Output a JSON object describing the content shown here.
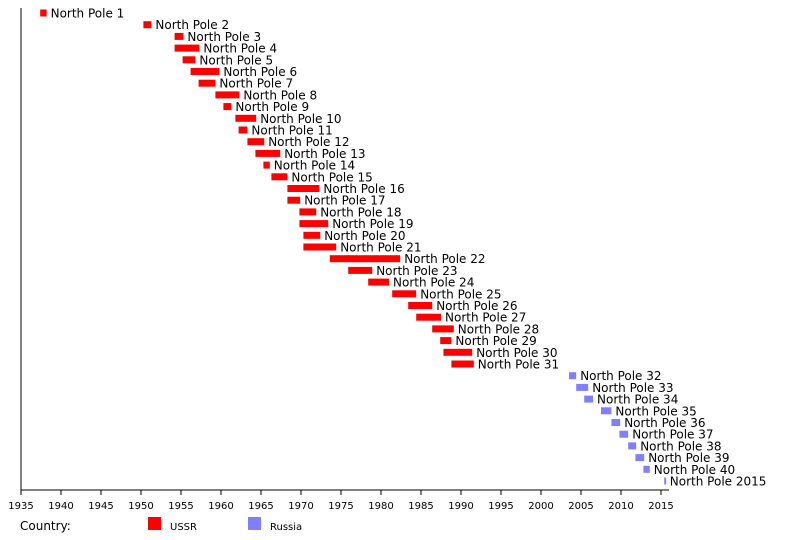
{
  "chart_data": {
    "type": "bar",
    "orientation": "horizontal-timeline",
    "xlim": [
      1935,
      2016
    ],
    "x_ticks": [
      "1935",
      "1940",
      "1945",
      "1950",
      "1955",
      "1960",
      "1965",
      "1970",
      "1975",
      "1980",
      "1985",
      "1990",
      "1995",
      "2000",
      "2005",
      "2010",
      "2015"
    ],
    "grid": false,
    "legend": {
      "title": "Country:",
      "placement": "bottom",
      "entries": [
        {
          "name": "USSR",
          "color": "#ff0000"
        },
        {
          "name": "Russia",
          "color": "#8080ff"
        }
      ]
    },
    "stations": [
      {
        "name": "North Pole 1",
        "start": 1937.4,
        "end": 1938.2,
        "country": "USSR"
      },
      {
        "name": "North Pole 2",
        "start": 1950.3,
        "end": 1951.3,
        "country": "USSR"
      },
      {
        "name": "North Pole 3",
        "start": 1954.2,
        "end": 1955.3,
        "country": "USSR"
      },
      {
        "name": "North Pole 4",
        "start": 1954.2,
        "end": 1957.3,
        "country": "USSR"
      },
      {
        "name": "North Pole 5",
        "start": 1955.2,
        "end": 1956.8,
        "country": "USSR"
      },
      {
        "name": "North Pole 6",
        "start": 1956.2,
        "end": 1959.8,
        "country": "USSR"
      },
      {
        "name": "North Pole 7",
        "start": 1957.2,
        "end": 1959.3,
        "country": "USSR"
      },
      {
        "name": "North Pole 8",
        "start": 1959.3,
        "end": 1962.3,
        "country": "USSR"
      },
      {
        "name": "North Pole 9",
        "start": 1960.3,
        "end": 1961.3,
        "country": "USSR"
      },
      {
        "name": "North Pole 10",
        "start": 1961.8,
        "end": 1964.4,
        "country": "USSR"
      },
      {
        "name": "North Pole 11",
        "start": 1962.2,
        "end": 1963.3,
        "country": "USSR"
      },
      {
        "name": "North Pole 12",
        "start": 1963.3,
        "end": 1965.4,
        "country": "USSR"
      },
      {
        "name": "North Pole 13",
        "start": 1964.3,
        "end": 1967.4,
        "country": "USSR"
      },
      {
        "name": "North Pole 14",
        "start": 1965.3,
        "end": 1966.1,
        "country": "USSR"
      },
      {
        "name": "North Pole 15",
        "start": 1966.3,
        "end": 1968.3,
        "country": "USSR"
      },
      {
        "name": "North Pole 16",
        "start": 1968.3,
        "end": 1972.3,
        "country": "USSR"
      },
      {
        "name": "North Pole 17",
        "start": 1968.3,
        "end": 1969.9,
        "country": "USSR"
      },
      {
        "name": "North Pole 18",
        "start": 1969.8,
        "end": 1971.9,
        "country": "USSR"
      },
      {
        "name": "North Pole 19",
        "start": 1969.8,
        "end": 1973.4,
        "country": "USSR"
      },
      {
        "name": "North Pole 20",
        "start": 1970.3,
        "end": 1972.4,
        "country": "USSR"
      },
      {
        "name": "North Pole 21",
        "start": 1970.3,
        "end": 1974.4,
        "country": "USSR"
      },
      {
        "name": "North Pole 22",
        "start": 1973.6,
        "end": 1982.4,
        "country": "USSR"
      },
      {
        "name": "North Pole 23",
        "start": 1975.9,
        "end": 1978.9,
        "country": "USSR"
      },
      {
        "name": "North Pole 24",
        "start": 1978.4,
        "end": 1981.0,
        "country": "USSR"
      },
      {
        "name": "North Pole 25",
        "start": 1981.4,
        "end": 1984.4,
        "country": "USSR"
      },
      {
        "name": "North Pole 26",
        "start": 1983.4,
        "end": 1986.4,
        "country": "USSR"
      },
      {
        "name": "North Pole 27",
        "start": 1984.4,
        "end": 1987.5,
        "country": "USSR"
      },
      {
        "name": "North Pole 28",
        "start": 1986.4,
        "end": 1989.1,
        "country": "USSR"
      },
      {
        "name": "North Pole 29",
        "start": 1987.4,
        "end": 1988.8,
        "country": "USSR"
      },
      {
        "name": "North Pole 30",
        "start": 1987.8,
        "end": 1991.4,
        "country": "USSR"
      },
      {
        "name": "North Pole 31",
        "start": 1988.8,
        "end": 1991.6,
        "country": "USSR"
      },
      {
        "name": "North Pole 32",
        "start": 2003.5,
        "end": 2004.4,
        "country": "Russia"
      },
      {
        "name": "North Pole 33",
        "start": 2004.4,
        "end": 2005.9,
        "country": "Russia"
      },
      {
        "name": "North Pole 34",
        "start": 2005.4,
        "end": 2006.5,
        "country": "Russia"
      },
      {
        "name": "North Pole 35",
        "start": 2007.5,
        "end": 2008.8,
        "country": "Russia"
      },
      {
        "name": "North Pole 36",
        "start": 2008.8,
        "end": 2009.9,
        "country": "Russia"
      },
      {
        "name": "North Pole 37",
        "start": 2009.8,
        "end": 2010.9,
        "country": "Russia"
      },
      {
        "name": "North Pole 38",
        "start": 2010.9,
        "end": 2011.9,
        "country": "Russia"
      },
      {
        "name": "North Pole 39",
        "start": 2011.8,
        "end": 2012.9,
        "country": "Russia"
      },
      {
        "name": "North Pole 40",
        "start": 2012.8,
        "end": 2013.6,
        "country": "Russia"
      },
      {
        "name": "North Pole 2015",
        "start": 2015.4,
        "end": 2015.6,
        "country": "Russia"
      }
    ]
  }
}
